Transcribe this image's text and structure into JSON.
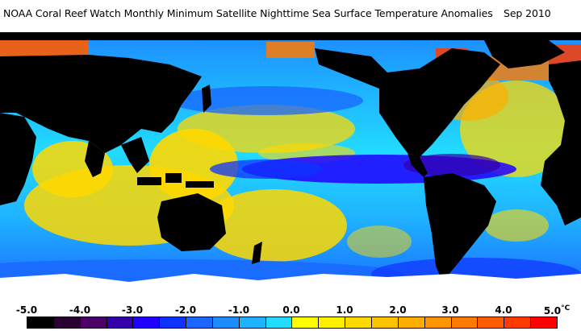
{
  "title": {
    "text": "NOAA Coral Reef Watch Monthly Minimum Satellite Nighttime Sea Surface Temperature Anomalies",
    "date": "Sep 2010"
  },
  "colorbar": {
    "ticks": [
      "-5.0",
      "-4.0",
      "-3.0",
      "-2.0",
      "-1.0",
      "0.0",
      "1.0",
      "2.0",
      "3.0",
      "4.0",
      "5.0"
    ],
    "unit": "°C",
    "colors": [
      "#000000",
      "#2a0033",
      "#4b0066",
      "#3300aa",
      "#2000ff",
      "#0f33ff",
      "#1a66ff",
      "#1c8cff",
      "#1fb2ff",
      "#22dbff",
      "#ffff00",
      "#fff000",
      "#ffd800",
      "#ffc400",
      "#ffae00",
      "#ff9600",
      "#ff7a00",
      "#ff5c00",
      "#ff3a00",
      "#ff0000"
    ]
  },
  "map_colors": {
    "land": "#000000",
    "ice": "#ffffff",
    "ocean_cool": "#1a66ff",
    "ocean_neutral": "#22dbff",
    "ocean_warm": "#ffd800",
    "ocean_hot": "#ff3a00",
    "ocean_cold": "#3300aa"
  }
}
